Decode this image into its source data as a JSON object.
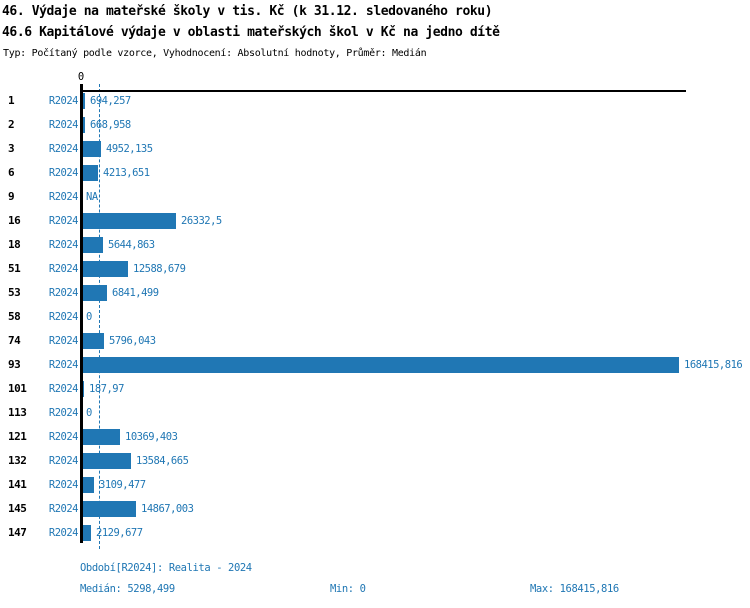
{
  "header": {
    "title_line1": "46. Výdaje na mateřské školy v tis. Kč (k 31.12. sledovaného roku)",
    "title_line2": "46.6 Kapitálové výdaje v oblasti mateřských škol v Kč na jedno dítě",
    "meta_line": "Typ: Počítaný podle vzorce, Vyhodnocení: Absolutní hodnoty, Průměr: Medián"
  },
  "chart_data": {
    "type": "bar",
    "orientation": "horizontal",
    "title": "46. Výdaje na mateřské školy v tis. Kč (k 31.12. sledovaného roku)",
    "subtitle": "46.6 Kapitálové výdaje v oblasti mateřských škol v Kč na jedno dítě",
    "series_name": "R2024",
    "axis_zero_label": "0",
    "categories": [
      "1",
      "2",
      "3",
      "6",
      "9",
      "16",
      "18",
      "51",
      "53",
      "58",
      "74",
      "93",
      "101",
      "113",
      "121",
      "132",
      "141",
      "145",
      "147"
    ],
    "values": [
      694.257,
      668.958,
      4952.135,
      4213.651,
      null,
      26332.5,
      5644.863,
      12588.679,
      6841.499,
      0,
      5796.043,
      168415.816,
      187.97,
      0,
      10369.403,
      13584.665,
      3109.477,
      14867.003,
      2129.677
    ],
    "value_labels": [
      "694,257",
      "668,958",
      "4952,135",
      "4213,651",
      "NA",
      "26332,5",
      "5644,863",
      "12588,679",
      "6841,499",
      "0",
      "5796,043",
      "168415,816",
      "187,97",
      "0",
      "10369,403",
      "13584,665",
      "3109,477",
      "14867,003",
      "2129,677"
    ],
    "xlim": [
      0,
      168415.816
    ],
    "median_value": 5298.499,
    "grid": false,
    "legend": "none",
    "colors": {
      "bar": "#2077b4",
      "category_label": "#000000",
      "axis": "#000000"
    }
  },
  "footer": {
    "period": "Období[R2024]: Realita - 2024",
    "median": "Medián: 5298,499",
    "min": "Min: 0",
    "max": "Max: 168415,816"
  }
}
